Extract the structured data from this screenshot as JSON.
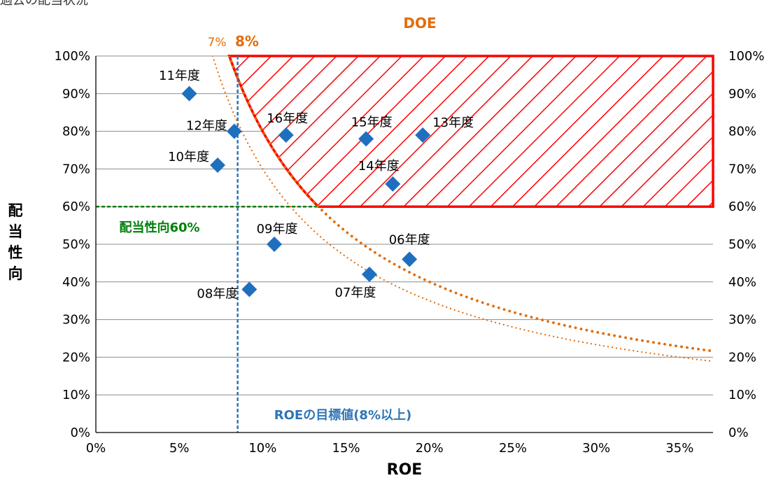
{
  "page": {
    "title": "過去の配当状況"
  },
  "chart_data": {
    "type": "scatter",
    "xlabel": "ROE",
    "ylabel": "配当性向",
    "xlim": [
      0,
      37
    ],
    "ylim": [
      0,
      100
    ],
    "x_ticks": [
      "0%",
      "5%",
      "10%",
      "15%",
      "20%",
      "25%",
      "30%",
      "35%"
    ],
    "y_ticks": [
      "0%",
      "10%",
      "20%",
      "30%",
      "40%",
      "50%",
      "60%",
      "70%",
      "80%",
      "90%",
      "100%"
    ],
    "grid": true,
    "points": [
      {
        "label": "06年度",
        "x": 18.8,
        "y": 46
      },
      {
        "label": "07年度",
        "x": 16.4,
        "y": 42
      },
      {
        "label": "08年度",
        "x": 9.2,
        "y": 38
      },
      {
        "label": "09年度",
        "x": 10.7,
        "y": 50
      },
      {
        "label": "10年度",
        "x": 7.3,
        "y": 71
      },
      {
        "label": "11年度",
        "x": 5.6,
        "y": 90
      },
      {
        "label": "12年度",
        "x": 8.3,
        "y": 80
      },
      {
        "label": "13年度",
        "x": 19.6,
        "y": 79
      },
      {
        "label": "14年度",
        "x": 17.8,
        "y": 66
      },
      {
        "label": "15年度",
        "x": 16.2,
        "y": 78
      },
      {
        "label": "16年度",
        "x": 11.4,
        "y": 79
      }
    ],
    "reference_lines": {
      "roe_target": {
        "x": 8.5,
        "label": "ROEの目標値(8%以上)",
        "color": "#2E75B6"
      },
      "payout_target": {
        "y": 60,
        "label": "配当性向60%",
        "color": "#00800A"
      }
    },
    "doe_curves": {
      "header": "DOE",
      "curves": [
        {
          "doe": 7,
          "label": "7%"
        },
        {
          "doe": 8,
          "label": "8%"
        }
      ],
      "color": "#E36C09"
    },
    "target_region": {
      "color": "#FF0000",
      "fill": "diagonal-hatch"
    },
    "marker_color": "#1F6FBF"
  }
}
